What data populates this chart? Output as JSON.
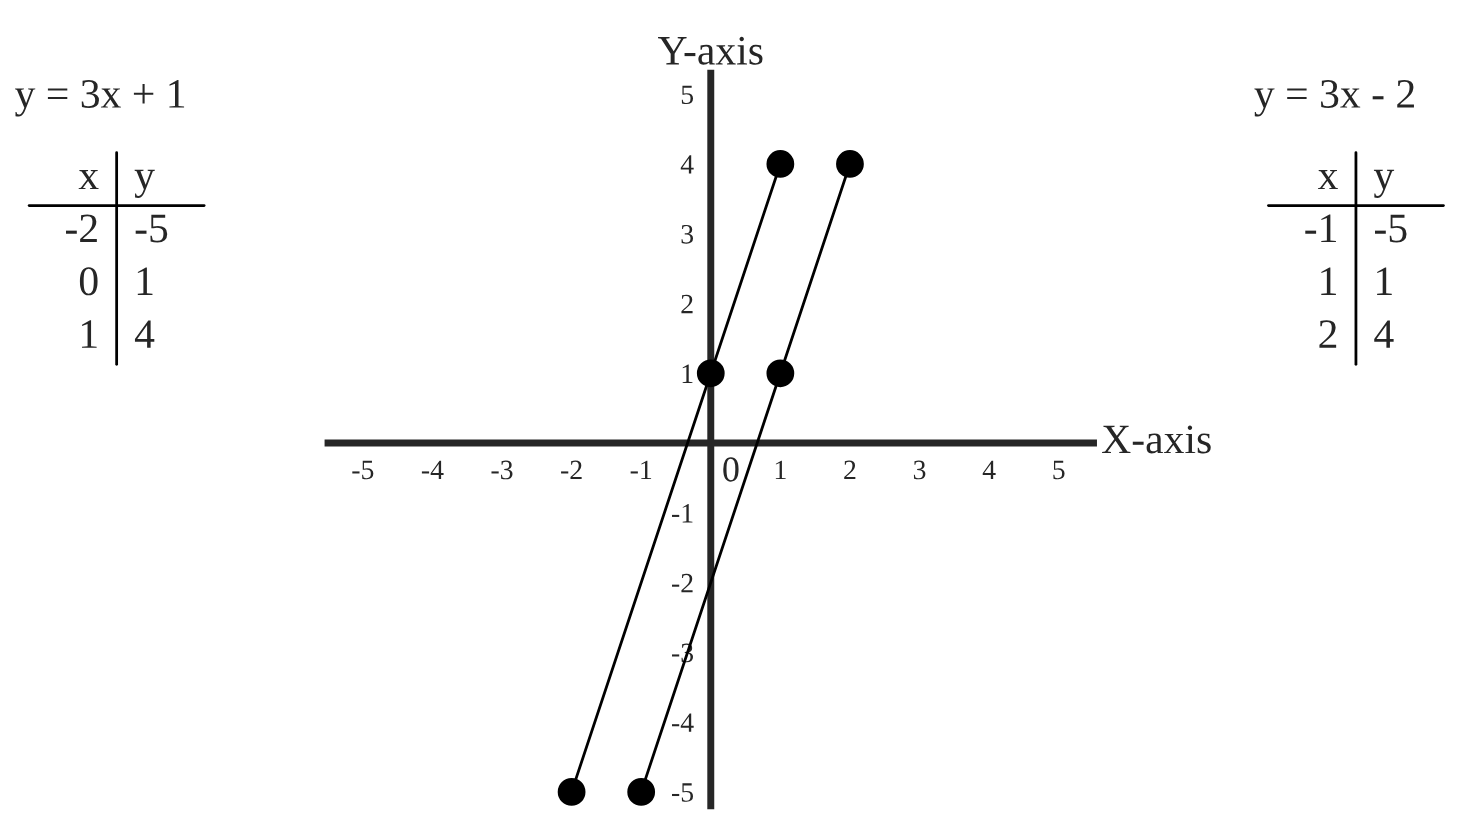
{
  "chart_data": {
    "type": "line",
    "xlabel": "X-axis",
    "ylabel": "Y-axis",
    "series": [
      {
        "color": "#000000",
        "x": [
          -2,
          0,
          1
        ],
        "values": [
          -5,
          1,
          4
        ]
      },
      {
        "color": "#000000",
        "x": [
          -1,
          1,
          2
        ],
        "values": [
          -5,
          1,
          4
        ]
      }
    ],
    "marker": "circle",
    "line_style": "solid",
    "grid": false,
    "legend": false,
    "xlim": [
      -5.5,
      5.5
    ],
    "ylim": [
      -5.2,
      5.3
    ],
    "xticks": [
      -5,
      -4,
      -3,
      -2,
      -1,
      1,
      2,
      3,
      4,
      5
    ],
    "yticks": [
      -5,
      -4,
      -3,
      -2,
      -1,
      1,
      2,
      3,
      4,
      5
    ],
    "annotations": [
      "0",
      "y = 3x + 1",
      "x\ty\n-2\t-5\n0\t1\n1\t4",
      "y = 3x - 2",
      "x\ty\n-1\t-5\n1\t1\n2\t4"
    ]
  }
}
